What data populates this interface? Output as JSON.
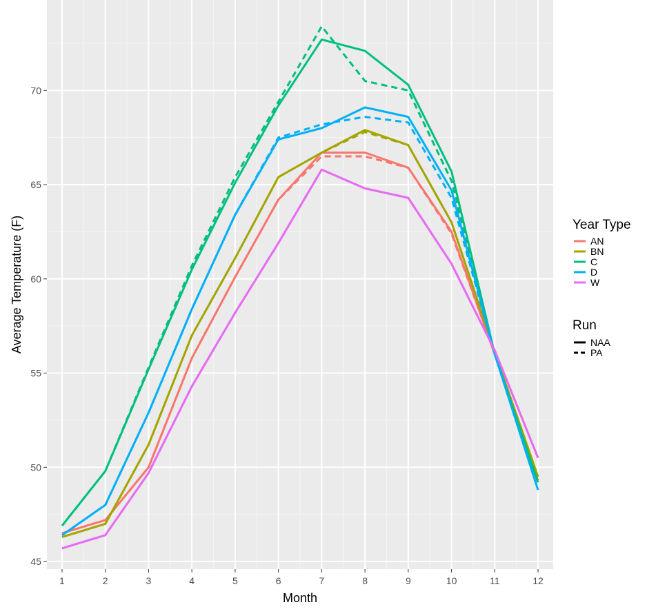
{
  "chart_data": {
    "type": "line",
    "xlabel": "Month",
    "ylabel": "Average Temperature (F)",
    "x": [
      1,
      2,
      3,
      4,
      5,
      6,
      7,
      8,
      9,
      10,
      11,
      12
    ],
    "xlim": [
      0.65,
      12.35
    ],
    "ylim": [
      44.6,
      74.8
    ],
    "xticks": [
      "1",
      "2",
      "3",
      "4",
      "5",
      "6",
      "7",
      "8",
      "9",
      "10",
      "11",
      "12"
    ],
    "yticks": [
      "45",
      "50",
      "55",
      "60",
      "65",
      "70"
    ],
    "grid": true,
    "legend_position": "right",
    "legend": {
      "color_title": "Year Type",
      "color_entries": [
        {
          "label": "AN",
          "color": "#F8766D"
        },
        {
          "label": "BN",
          "color": "#A3A500"
        },
        {
          "label": "C",
          "color": "#00BF7D"
        },
        {
          "label": "D",
          "color": "#00B0F6"
        },
        {
          "label": "W",
          "color": "#E76BF3"
        }
      ],
      "linetype_title": "Run",
      "linetype_entries": [
        {
          "label": "NAA",
          "style": "solid"
        },
        {
          "label": "PA",
          "style": "dashed"
        }
      ]
    },
    "series": [
      {
        "year_type": "AN",
        "run": "NAA",
        "color": "#F8766D",
        "style": "solid",
        "values": [
          46.5,
          47.2,
          50.0,
          55.8,
          60.1,
          64.2,
          66.7,
          66.7,
          65.9,
          62.5,
          56.0,
          49.3
        ]
      },
      {
        "year_type": "AN",
        "run": "PA",
        "color": "#F8766D",
        "style": "dashed",
        "values": [
          46.5,
          47.2,
          50.0,
          55.8,
          60.1,
          64.2,
          66.5,
          66.5,
          65.9,
          62.4,
          56.0,
          49.3
        ]
      },
      {
        "year_type": "BN",
        "run": "NAA",
        "color": "#A3A500",
        "style": "solid",
        "values": [
          46.3,
          47.0,
          51.2,
          57.0,
          61.1,
          65.4,
          66.7,
          67.9,
          67.1,
          63.0,
          56.1,
          49.5
        ]
      },
      {
        "year_type": "BN",
        "run": "PA",
        "color": "#A3A500",
        "style": "dashed",
        "values": [
          46.3,
          47.0,
          51.2,
          57.0,
          61.1,
          65.4,
          66.7,
          67.8,
          67.1,
          63.0,
          56.1,
          49.5
        ]
      },
      {
        "year_type": "C",
        "run": "NAA",
        "color": "#00BF7D",
        "style": "solid",
        "values": [
          46.9,
          49.8,
          55.2,
          60.5,
          65.1,
          69.2,
          72.7,
          72.1,
          70.3,
          65.7,
          56.0,
          49.2
        ]
      },
      {
        "year_type": "C",
        "run": "PA",
        "color": "#00BF7D",
        "style": "dashed",
        "values": [
          46.9,
          49.8,
          55.3,
          60.7,
          65.4,
          69.4,
          73.4,
          70.5,
          70.0,
          65.2,
          56.0,
          49.2
        ]
      },
      {
        "year_type": "D",
        "run": "NAA",
        "color": "#00B0F6",
        "style": "solid",
        "values": [
          46.4,
          48.0,
          52.9,
          58.4,
          63.4,
          67.4,
          68.0,
          69.1,
          68.6,
          64.7,
          56.0,
          48.8
        ]
      },
      {
        "year_type": "D",
        "run": "PA",
        "color": "#00B0F6",
        "style": "dashed",
        "values": [
          46.4,
          48.0,
          52.9,
          58.4,
          63.4,
          67.5,
          68.2,
          68.6,
          68.3,
          64.3,
          56.0,
          48.8
        ]
      },
      {
        "year_type": "W",
        "run": "NAA",
        "color": "#E76BF3",
        "style": "solid",
        "values": [
          45.7,
          46.4,
          49.7,
          54.3,
          58.2,
          61.9,
          65.8,
          64.8,
          64.3,
          60.8,
          56.2,
          50.5
        ]
      },
      {
        "year_type": "W",
        "run": "PA",
        "color": "#E76BF3",
        "style": "dashed",
        "values": [
          45.7,
          46.4,
          49.7,
          54.3,
          58.2,
          61.9,
          65.8,
          64.8,
          64.3,
          60.8,
          56.2,
          50.5
        ]
      }
    ]
  }
}
